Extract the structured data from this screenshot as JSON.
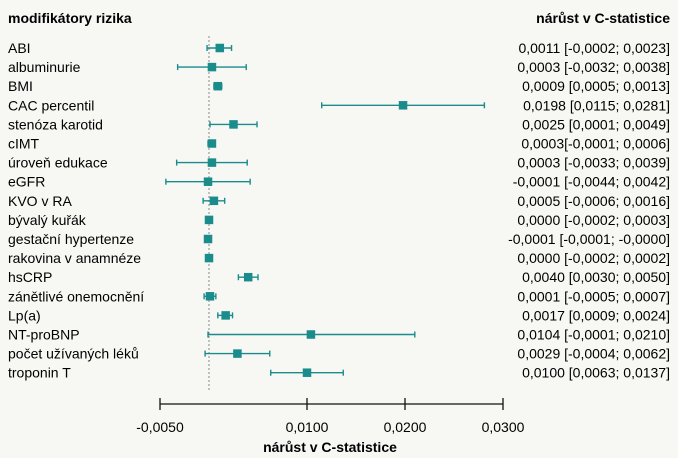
{
  "chart_data": {
    "type": "forest",
    "title_left": "modifikátory rizika",
    "title_right": "nárůst v C-statistice",
    "xlabel": "nárůst v C-statistice",
    "xlim": [
      -0.005,
      0.03
    ],
    "reference_line": 0,
    "xticks": [
      -0.005,
      0.01,
      0.02,
      0.03
    ],
    "xtick_labels": [
      "-0,0050",
      "0,0100",
      "0,0200",
      "0,0300"
    ],
    "colors": {
      "marker": "#1a8c8c",
      "reference": "#888888"
    },
    "rows": [
      {
        "label": "ABI",
        "est": 0.0011,
        "lo": -0.0002,
        "hi": 0.0023,
        "text": "0,0011 [-0,0002; 0,0023]"
      },
      {
        "label": "albuminurie",
        "est": 0.0003,
        "lo": -0.0032,
        "hi": 0.0038,
        "text": "0,0003 [-0,0032; 0,0038]"
      },
      {
        "label": "BMI",
        "est": 0.0009,
        "lo": 0.0005,
        "hi": 0.0013,
        "text": "0,0009 [0,0005; 0,0013]"
      },
      {
        "label": "CAC percentil",
        "est": 0.0198,
        "lo": 0.0115,
        "hi": 0.0281,
        "text": "0,0198 [0,0115; 0,0281]"
      },
      {
        "label": "stenóza karotid",
        "est": 0.0025,
        "lo": 0.0001,
        "hi": 0.0049,
        "text": "0,0025 [0,0001; 0,0049]"
      },
      {
        "label": "cIMT",
        "est": 0.0003,
        "lo": -0.0001,
        "hi": 0.0006,
        "text": "0,0003[-0,0001; 0,0006]"
      },
      {
        "label": "úroveň edukace",
        "est": 0.0003,
        "lo": -0.0033,
        "hi": 0.0039,
        "text": "0,0003 [-0,0033; 0,0039]"
      },
      {
        "label": "eGFR",
        "est": -0.0001,
        "lo": -0.0044,
        "hi": 0.0042,
        "text": "-0,0001 [-0,0044; 0,0042]"
      },
      {
        "label": "KVO v RA",
        "est": 0.0005,
        "lo": -0.0006,
        "hi": 0.0016,
        "text": "0,0005 [-0,0006; 0,0016]"
      },
      {
        "label": "bývalý kuřák",
        "est": 0.0,
        "lo": -0.0002,
        "hi": 0.0003,
        "text": "0,0000 [-0,0002; 0,0003]"
      },
      {
        "label": "gestační hypertenze",
        "est": -0.0001,
        "lo": -0.0001,
        "hi": 0.0,
        "text": "-0,0001 [-0,0001; -0,0000]"
      },
      {
        "label": "rakovina v anamnéze",
        "est": 0.0,
        "lo": -0.0002,
        "hi": 0.0002,
        "text": "0,0000 [-0,0002; 0,0002]"
      },
      {
        "label": "hsCRP",
        "est": 0.004,
        "lo": 0.003,
        "hi": 0.005,
        "text": "0,0040 [0,0030; 0,0050]"
      },
      {
        "label": "zánětlivé onemocnění",
        "est": 0.0001,
        "lo": -0.0005,
        "hi": 0.0007,
        "text": "0,0001 [-0,0005; 0,0007]"
      },
      {
        "label": "Lp(a)",
        "est": 0.0017,
        "lo": 0.0009,
        "hi": 0.0024,
        "text": "0,0017 [0,0009; 0,0024]"
      },
      {
        "label": "NT-proBNP",
        "est": 0.0104,
        "lo": -0.0001,
        "hi": 0.021,
        "text": "0,0104 [-0,0001; 0,0210]"
      },
      {
        "label": "počet užívaných léků",
        "est": 0.0029,
        "lo": -0.0004,
        "hi": 0.0062,
        "text": "0,0029 [-0,0004; 0,0062]"
      },
      {
        "label": "troponin T",
        "est": 0.01,
        "lo": 0.0063,
        "hi": 0.0137,
        "text": "0,0100 [0,0063; 0,0137]"
      }
    ]
  }
}
